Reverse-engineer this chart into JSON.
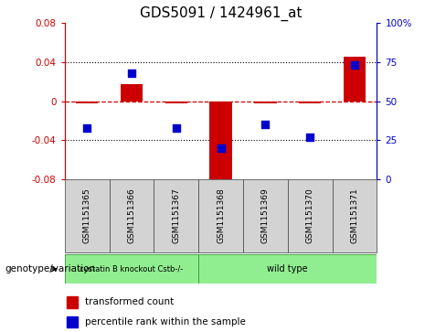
{
  "title": "GDS5091 / 1424961_at",
  "samples": [
    "GSM1151365",
    "GSM1151366",
    "GSM1151367",
    "GSM1151368",
    "GSM1151369",
    "GSM1151370",
    "GSM1151371"
  ],
  "transformed_count": [
    -0.002,
    0.018,
    -0.002,
    -0.085,
    -0.002,
    -0.002,
    0.046
  ],
  "percentile_rank": [
    33,
    68,
    33,
    20,
    35,
    27,
    73
  ],
  "ylim_left": [
    -0.08,
    0.08
  ],
  "ylim_right": [
    0,
    100
  ],
  "yticks_left": [
    -0.08,
    -0.04,
    0.0,
    0.04,
    0.08
  ],
  "yticks_right": [
    0,
    25,
    50,
    75,
    100
  ],
  "ytick_labels_left": [
    "-0.08",
    "-0.04",
    "0",
    "0.04",
    "0.08"
  ],
  "ytick_labels_right": [
    "0",
    "25",
    "50",
    "75",
    "100%"
  ],
  "bar_color": "#cc0000",
  "dot_color": "#0000cc",
  "dashed_line_color": "#cc0000",
  "grid_line_color": "#000000",
  "group1_label": "cystatin B knockout Cstb-/-",
  "group2_label": "wild type",
  "group1_indices": [
    0,
    1,
    2
  ],
  "group2_indices": [
    3,
    4,
    5,
    6
  ],
  "group1_color": "#90ee90",
  "group2_color": "#90ee90",
  "genotype_label": "genotype/variation",
  "legend_bar_label": "transformed count",
  "legend_dot_label": "percentile rank within the sample",
  "bar_width": 0.5,
  "dot_size": 40,
  "title_fontsize": 11,
  "tick_fontsize": 7.5,
  "sample_fontsize": 6.5,
  "legend_fontsize": 7.5,
  "group_fontsize": 7,
  "genotype_fontsize": 7.5
}
